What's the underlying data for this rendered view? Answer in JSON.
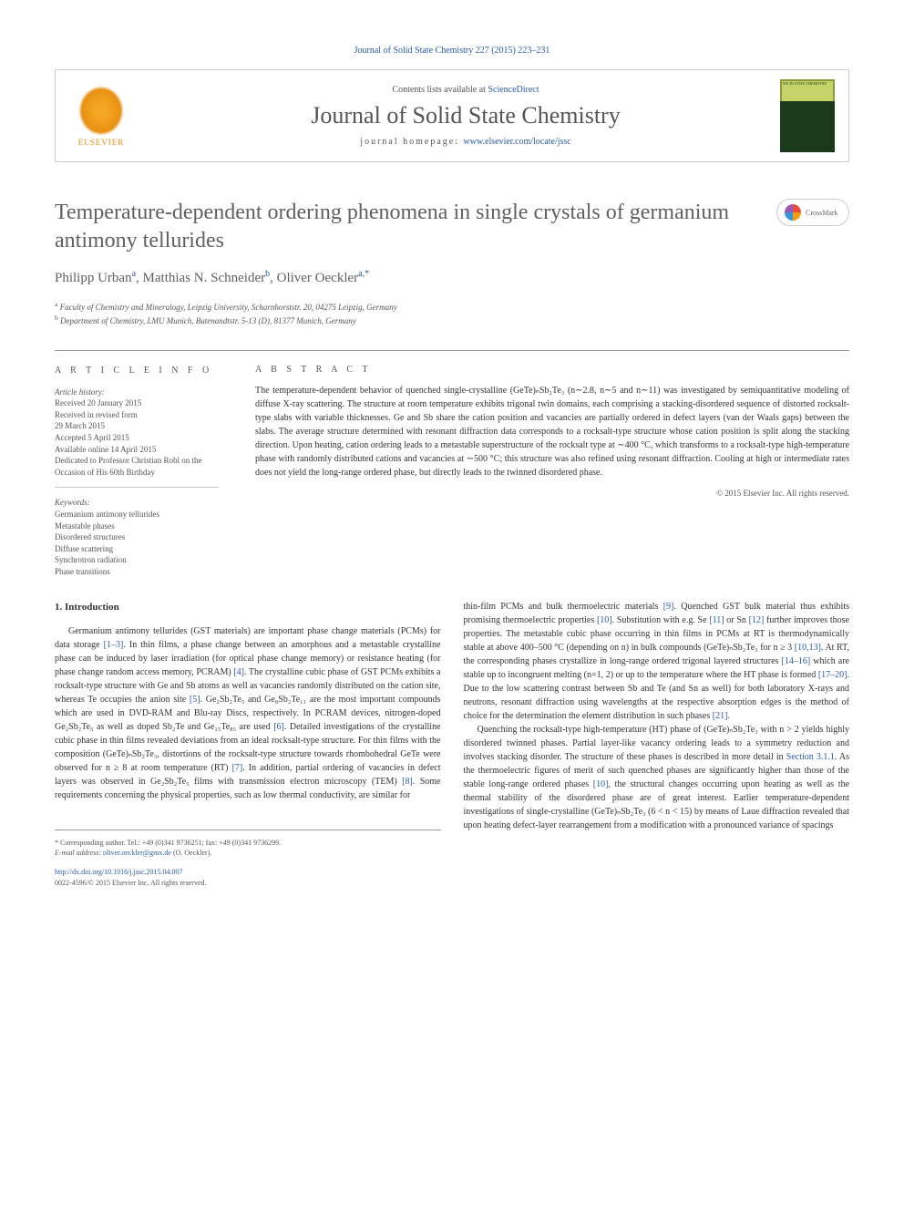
{
  "header": {
    "citation": "Journal of Solid State Chemistry 227 (2015) 223–231",
    "contents_prefix": "Contents lists available at ",
    "contents_link": "ScienceDirect",
    "journal_name": "Journal of Solid State Chemistry",
    "homepage_prefix": "journal homepage: ",
    "homepage_link": "www.elsevier.com/locate/jssc",
    "elsevier": "ELSEVIER",
    "cover_text": "SOLID STATE CHEMISTRY"
  },
  "crossmark": "CrossMark",
  "title": "Temperature-dependent ordering phenomena in single crystals of germanium antimony tellurides",
  "authors": {
    "a1_name": "Philipp Urban",
    "a1_sup": "a",
    "a2_name": "Matthias N. Schneider",
    "a2_sup": "b",
    "a3_name": "Oliver Oeckler",
    "a3_sup": "a,",
    "a3_star": "*"
  },
  "affiliations": {
    "a": "Faculty of Chemistry and Mineralogy, Leipzig University, Scharnhorststr. 20, 04275 Leipzig, Germany",
    "b": "Department of Chemistry, LMU Munich, Butenandtstr. 5-13 (D), 81377 Munich, Germany"
  },
  "info": {
    "heading": "A R T I C L E  I N F O",
    "history_label": "Article history:",
    "received": "Received 20 January 2015",
    "revised1": "Received in revised form",
    "revised2": "29 March 2015",
    "accepted": "Accepted 5 April 2015",
    "online": "Available online 14 April 2015",
    "dedication1": "Dedicated to Professor Christian Robl on the",
    "dedication2": "Occasion of His 60th Birthday",
    "keywords_label": "Keywords:",
    "kw1": "Germanium antimony tellurides",
    "kw2": "Metastable phases",
    "kw3": "Disordered structures",
    "kw4": "Diffuse scattering",
    "kw5": "Synchrotron radiation",
    "kw6": "Phase transitions"
  },
  "abstract": {
    "heading": "A B S T R A C T",
    "text": "The temperature-dependent behavior of quenched single-crystalline (GeTe)ₙSb₂Te₃ (n∼2.8, n∼5 and n∼11) was investigated by semiquantitative modeling of diffuse X-ray scattering. The structure at room temperature exhibits trigonal twin domains, each comprising a stacking-disordered sequence of distorted rocksalt-type slabs with variable thicknesses. Ge and Sb share the cation position and vacancies are partially ordered in defect layers (van der Waals gaps) between the slabs. The average structure determined with resonant diffraction data corresponds to a rocksalt-type structure whose cation position is split along the stacking direction. Upon heating, cation ordering leads to a metastable superstructure of the rocksalt type at ∼400 °C, which transforms to a rocksalt-type high-temperature phase with randomly distributed cations and vacancies at ∼500 °C; this structure was also refined using resonant diffraction. Cooling at high or intermediate rates does not yield the long-range ordered phase, but directly leads to the twinned disordered phase.",
    "copyright": "© 2015 Elsevier Inc. All rights reserved."
  },
  "body": {
    "section_heading": "1.  Introduction",
    "col1_p1a": "Germanium antimony tellurides (GST materials) are important phase change materials (PCMs) for data storage ",
    "ref_1_3": "[1–3]",
    "col1_p1b": ". In thin films, a phase change between an amorphous and a metastable crystalline phase can be induced by laser irradiation (for optical phase change memory) or resistance heating (for phase change random access memory, PCRAM) ",
    "ref_4": "[4]",
    "col1_p1c": ". The crystalline cubic phase of GST PCMs exhibits a rocksalt-type structure with Ge and Sb atoms as well as vacancies randomly distributed on the cation site, whereas Te occupies the anion site ",
    "ref_5": "[5]",
    "col1_p1d": ". Ge₂Sb₂Te₅ and Ge₈Sb₂Te₁₁ are the most important compounds which are used in DVD-RAM and Blu-ray Discs, respectively. In PCRAM devices, nitrogen-doped Ge₂Sb₂Te₅ as well as doped Sb₂Te and Ge₁₅Te₈₅ are used ",
    "ref_6": "[6]",
    "col1_p1e": ". Detailed investigations of the crystalline cubic phase in thin films revealed deviations from an ideal rocksalt-type structure. For thin films with the composition (GeTe)ₙSb₂Te₃, distortions of the rocksalt-type structure towards rhombohedral GeTe were observed for n ≥ 8 at room temperature (RT) ",
    "ref_7": "[7]",
    "col1_p1f": ". In addition, partial ordering of vacancies in defect layers was observed in Ge₂Sb₂Te₅ films with transmission electron microscopy (TEM) ",
    "ref_8": "[8]",
    "col1_p1g": ". Some requirements concerning the physical properties, such as low thermal conductivity, are similar for",
    "col2_p1a": "thin-film PCMs and bulk thermoelectric materials ",
    "ref_9": "[9]",
    "col2_p1b": ". Quenched GST bulk material thus exhibits promising thermoelectric properties ",
    "ref_10": "[10]",
    "col2_p1c": ". Substitution with e.g. Se ",
    "ref_11": "[11]",
    "col2_p1d": " or Sn ",
    "ref_12": "[12]",
    "col2_p1e": " further improves those properties. The metastable cubic phase occurring in thin films in PCMs at RT is thermodynamically stable at above 400–500 °C (depending on n) in bulk compounds (GeTe)ₙSb₂Te₃ for n ≥ 3 ",
    "ref_10_13": "[10,13]",
    "col2_p1f": ". At RT, the corresponding phases crystallize in long-range ordered trigonal layered structures ",
    "ref_14_16": "[14–16]",
    "col2_p1g": " which are stable up to incongruent melting (n=1, 2) or up to the temperature where the HT phase is formed ",
    "ref_17_20": "[17–20]",
    "col2_p1h": ". Due to the low scattering contrast between Sb and Te (and Sn as well) for both laboratory X-rays and neutrons, resonant diffraction using wavelengths at the respective absorption edges is the method of choice for the determination the element distribution in such phases ",
    "ref_21": "[21]",
    "col2_p1i": ".",
    "col2_p2a": "Quenching the rocksalt-type high-temperature (HT) phase of (GeTe)ₙSb₂Te₃ with n > 2 yields highly disordered twinned phases. Partial layer-like vacancy ordering leads to a symmetry reduction and involves stacking disorder. The structure of these phases is described in more detail in ",
    "section_311": "Section 3.1.1",
    "col2_p2b": ". As the thermoelectric figures of merit of such quenched phases are significantly higher than those of the stable long-range ordered phases ",
    "ref_10b": "[10]",
    "col2_p2c": ", the structural changes occurring upon heating as well as the thermal stability of the disordered phase are of great interest. Earlier temperature-dependent investigations of single-crystalline (GeTe)ₙSb₂Te₃ (6 < n < 15) by means of Laue diffraction revealed that upon heating defect-layer rearrangement from a modification with a pronounced variance of spacings"
  },
  "footnote": {
    "corr": "* Corresponding author. Tel.: +49 (0)341 9736251; fax: +49 (0)341 9736299.",
    "email_label": "E-mail address: ",
    "email": "oliver.oeckler@gmx.de",
    "email_suffix": " (O. Oeckler).",
    "doi": "http://dx.doi.org/10.1016/j.jssc.2015.04.007",
    "issn": "0022-4596/© 2015 Elsevier Inc. All rights reserved."
  },
  "colors": {
    "link": "#2a5aa5",
    "text": "#333333",
    "muted": "#555555",
    "heading_gray": "#606060",
    "border": "#cccccc",
    "elsevier_orange": "#e89012",
    "cover_green": "#8b9b3a"
  }
}
